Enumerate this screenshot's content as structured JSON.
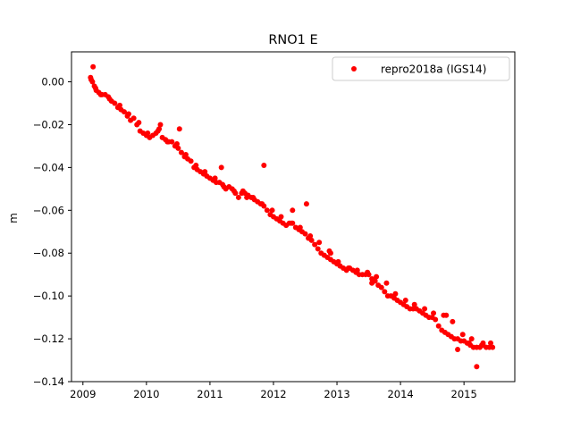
{
  "chart_data": {
    "type": "scatter",
    "title": "RNO1 E",
    "xlabel": "",
    "ylabel": "m",
    "xlim": [
      2008.82,
      2015.8
    ],
    "ylim": [
      -0.14,
      0.014
    ],
    "x_ticks": [
      2009,
      2010,
      2011,
      2012,
      2013,
      2014,
      2015
    ],
    "x_tick_labels": [
      "2009",
      "2010",
      "2011",
      "2012",
      "2013",
      "2014",
      "2015"
    ],
    "y_ticks": [
      0.0,
      -0.02,
      -0.04,
      -0.06,
      -0.08,
      -0.1,
      -0.12,
      -0.14
    ],
    "y_tick_labels": [
      "0.00",
      "−0.02",
      "−0.04",
      "−0.06",
      "−0.08",
      "−0.10",
      "−0.12",
      "−0.14"
    ],
    "grid": false,
    "legend_position": "top-right",
    "series": [
      {
        "name": "repro2018a (IGS14)",
        "color": "#ff0000",
        "marker": "circle",
        "x": [
          2009.12,
          2009.15,
          2009.18,
          2009.21,
          2009.25,
          2009.3,
          2009.35,
          2009.4,
          2009.45,
          2009.5,
          2009.55,
          2009.6,
          2009.65,
          2009.7,
          2009.75,
          2009.8,
          2009.85,
          2009.9,
          2009.95,
          2010.0,
          2010.05,
          2010.1,
          2010.15,
          2010.2,
          2010.25,
          2010.3,
          2010.35,
          2010.4,
          2010.45,
          2010.5,
          2010.55,
          2010.6,
          2010.65,
          2010.7,
          2010.75,
          2010.8,
          2010.85,
          2010.9,
          2010.95,
          2011.0,
          2011.05,
          2011.1,
          2011.15,
          2011.2,
          2011.25,
          2011.3,
          2011.35,
          2011.4,
          2011.45,
          2011.5,
          2011.55,
          2011.6,
          2011.65,
          2011.7,
          2011.75,
          2011.8,
          2011.85,
          2011.9,
          2011.95,
          2012.0,
          2012.05,
          2012.1,
          2012.15,
          2012.2,
          2012.25,
          2012.3,
          2012.35,
          2012.4,
          2012.45,
          2012.5,
          2012.55,
          2012.6,
          2012.65,
          2012.7,
          2012.75,
          2012.8,
          2012.85,
          2012.9,
          2012.95,
          2013.0,
          2013.05,
          2013.1,
          2013.15,
          2013.2,
          2013.25,
          2013.3,
          2013.35,
          2013.4,
          2013.45,
          2013.5,
          2013.55,
          2013.6,
          2013.65,
          2013.7,
          2013.75,
          2013.8,
          2013.85,
          2013.9,
          2013.95,
          2014.0,
          2014.05,
          2014.1,
          2014.15,
          2014.2,
          2014.25,
          2014.3,
          2014.35,
          2014.4,
          2014.45,
          2014.5,
          2014.55,
          2014.6,
          2014.65,
          2014.7,
          2014.75,
          2014.8,
          2014.85,
          2014.9,
          2014.95,
          2015.0,
          2015.05,
          2015.1,
          2015.15,
          2015.2,
          2015.25,
          2015.3,
          2015.35,
          2015.4,
          2015.45,
          2009.13,
          2009.2,
          2009.28,
          2009.42,
          2009.58,
          2009.72,
          2009.88,
          2010.02,
          2010.18,
          2010.33,
          2010.48,
          2010.62,
          2010.78,
          2010.92,
          2011.08,
          2011.22,
          2011.38,
          2011.52,
          2011.68,
          2011.82,
          2011.98,
          2012.12,
          2012.28,
          2012.42,
          2012.58,
          2012.72,
          2012.88,
          2013.02,
          2013.18,
          2013.32,
          2013.48,
          2013.62,
          2013.78,
          2013.92,
          2014.08,
          2014.22,
          2014.38,
          2014.52,
          2014.68,
          2014.82,
          2014.98,
          2015.12,
          2015.28,
          2015.42,
          2009.16,
          2010.52,
          2011.85,
          2012.3,
          2012.52,
          2014.9,
          2015.08,
          2015.2,
          2010.22,
          2011.18,
          2011.58,
          2012.9,
          2013.55,
          2014.72,
          2015.3
        ],
        "y": [
          0.002,
          0.0,
          -0.002,
          -0.004,
          -0.005,
          -0.006,
          -0.006,
          -0.007,
          -0.009,
          -0.01,
          -0.012,
          -0.013,
          -0.014,
          -0.016,
          -0.018,
          -0.017,
          -0.02,
          -0.023,
          -0.024,
          -0.025,
          -0.026,
          -0.025,
          -0.024,
          -0.022,
          -0.026,
          -0.027,
          -0.028,
          -0.028,
          -0.03,
          -0.031,
          -0.033,
          -0.035,
          -0.036,
          -0.037,
          -0.04,
          -0.041,
          -0.042,
          -0.043,
          -0.044,
          -0.045,
          -0.046,
          -0.047,
          -0.047,
          -0.048,
          -0.05,
          -0.049,
          -0.05,
          -0.052,
          -0.054,
          -0.052,
          -0.052,
          -0.053,
          -0.054,
          -0.055,
          -0.056,
          -0.057,
          -0.058,
          -0.06,
          -0.062,
          -0.063,
          -0.064,
          -0.065,
          -0.066,
          -0.067,
          -0.066,
          -0.066,
          -0.068,
          -0.069,
          -0.07,
          -0.071,
          -0.073,
          -0.074,
          -0.076,
          -0.078,
          -0.08,
          -0.081,
          -0.082,
          -0.083,
          -0.084,
          -0.085,
          -0.086,
          -0.087,
          -0.088,
          -0.087,
          -0.088,
          -0.089,
          -0.09,
          -0.09,
          -0.09,
          -0.09,
          -0.092,
          -0.093,
          -0.095,
          -0.096,
          -0.098,
          -0.1,
          -0.1,
          -0.101,
          -0.102,
          -0.103,
          -0.104,
          -0.105,
          -0.106,
          -0.106,
          -0.106,
          -0.107,
          -0.108,
          -0.109,
          -0.11,
          -0.11,
          -0.111,
          -0.114,
          -0.116,
          -0.117,
          -0.118,
          -0.119,
          -0.12,
          -0.12,
          -0.121,
          -0.121,
          -0.122,
          -0.123,
          -0.124,
          -0.124,
          -0.124,
          -0.123,
          -0.124,
          -0.124,
          -0.124,
          0.001,
          -0.003,
          -0.006,
          -0.008,
          -0.011,
          -0.015,
          -0.019,
          -0.024,
          -0.023,
          -0.028,
          -0.029,
          -0.034,
          -0.039,
          -0.042,
          -0.045,
          -0.049,
          -0.051,
          -0.051,
          -0.054,
          -0.057,
          -0.06,
          -0.063,
          -0.066,
          -0.068,
          -0.072,
          -0.075,
          -0.079,
          -0.084,
          -0.087,
          -0.088,
          -0.089,
          -0.091,
          -0.094,
          -0.099,
          -0.102,
          -0.104,
          -0.106,
          -0.108,
          -0.109,
          -0.112,
          -0.118,
          -0.12,
          -0.123,
          -0.122,
          0.007,
          -0.022,
          -0.039,
          -0.06,
          -0.057,
          -0.125,
          -0.122,
          -0.133,
          -0.02,
          -0.04,
          -0.054,
          -0.08,
          -0.094,
          -0.109,
          -0.122
        ]
      }
    ]
  }
}
